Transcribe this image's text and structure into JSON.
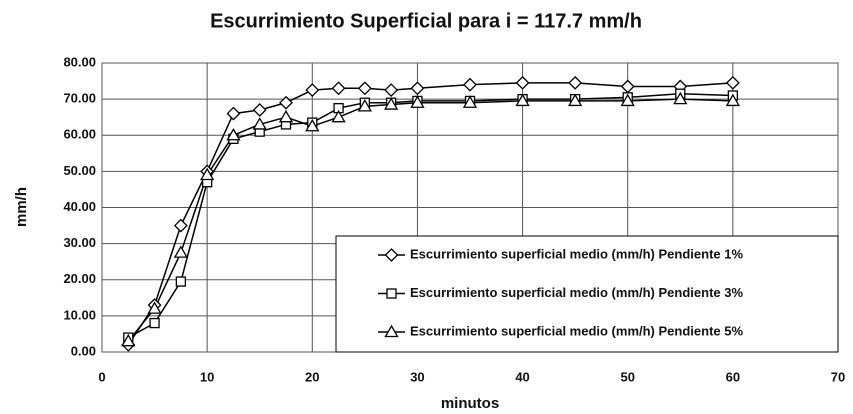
{
  "chart_data": {
    "type": "line",
    "title": "Escurrimiento Superficial  para  i = 117.7 mm/h",
    "x_label": "minutos",
    "y_label": "mm/h",
    "x": [
      2.5,
      5,
      7.5,
      10,
      12.5,
      15,
      17.5,
      20,
      22.5,
      25,
      27.5,
      30,
      35,
      40,
      45,
      50,
      55,
      60
    ],
    "series": [
      {
        "name": "Escurrimiento superficial medio (mm/h) Pendiente 1%",
        "color": "#000000",
        "marker": "diamond",
        "values": [
          2,
          13,
          35,
          50,
          66,
          67,
          69,
          72.5,
          73,
          73,
          72.5,
          73,
          74,
          74.5,
          74.5,
          73.5,
          73.5,
          74.5
        ]
      },
      {
        "name": "Escurrimiento superficial medio (mm/h) Pendiente 3%",
        "color": "#000000",
        "marker": "square",
        "values": [
          4,
          8,
          19.5,
          47,
          59,
          61,
          63,
          63.5,
          67.5,
          69,
          69,
          69.5,
          69.5,
          70,
          70,
          70.5,
          71.5,
          71
        ]
      },
      {
        "name": "Escurrimiento superficial medio (mm/h) Pendiente 5%",
        "color": "#000000",
        "marker": "triangle",
        "values": [
          3,
          12,
          27.5,
          49,
          60,
          63,
          65,
          62.5,
          65,
          68,
          68.5,
          69,
          69,
          69.5,
          69.5,
          69.5,
          70,
          69.5
        ]
      }
    ],
    "xlim": [
      0,
      70
    ],
    "xticks": [
      0,
      10,
      20,
      30,
      40,
      50,
      60,
      70
    ],
    "ylim": [
      0,
      80
    ],
    "yticks": [
      {
        "value": 0,
        "label": "0.00"
      },
      {
        "value": 10,
        "label": "10.00"
      },
      {
        "value": 20,
        "label": "20.00"
      },
      {
        "value": 30,
        "label": "30.00"
      },
      {
        "value": 40,
        "label": "40.00"
      },
      {
        "value": 50,
        "label": "50.00"
      },
      {
        "value": 60,
        "label": "60.00"
      },
      {
        "value": 70,
        "label": "70.00"
      },
      {
        "value": 80,
        "label": "80.00"
      }
    ],
    "grid": true,
    "legend": "lower right"
  }
}
